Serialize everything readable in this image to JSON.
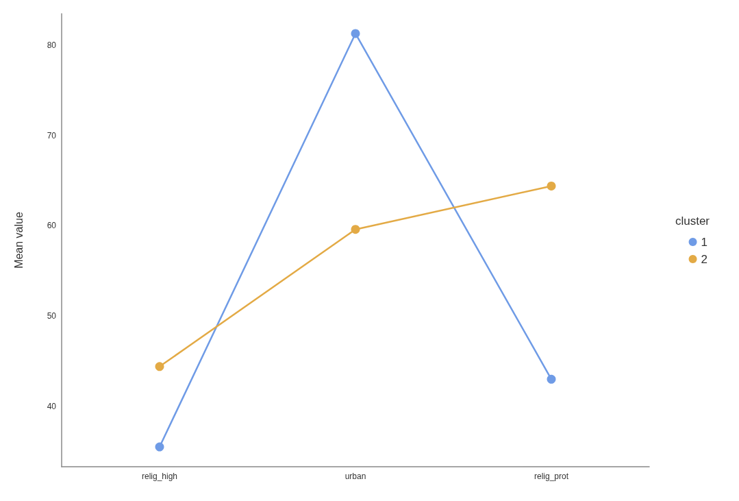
{
  "chart_data": {
    "type": "line",
    "ylabel": "Mean value",
    "legend_title": "cluster",
    "categories": [
      "relig_high",
      "urban",
      "relig_prot"
    ],
    "series": [
      {
        "name": "1",
        "color": "#6f9be6",
        "values": [
          35.5,
          81.3,
          43.0
        ]
      },
      {
        "name": "2",
        "color": "#e3aa45",
        "values": [
          44.4,
          59.6,
          64.4
        ]
      }
    ],
    "ylim": [
      33.3,
      83.5
    ],
    "yticks": [
      40,
      50,
      60,
      70,
      80
    ],
    "grid": false,
    "legend": "right",
    "marker": "circle",
    "line_style": "solid"
  }
}
